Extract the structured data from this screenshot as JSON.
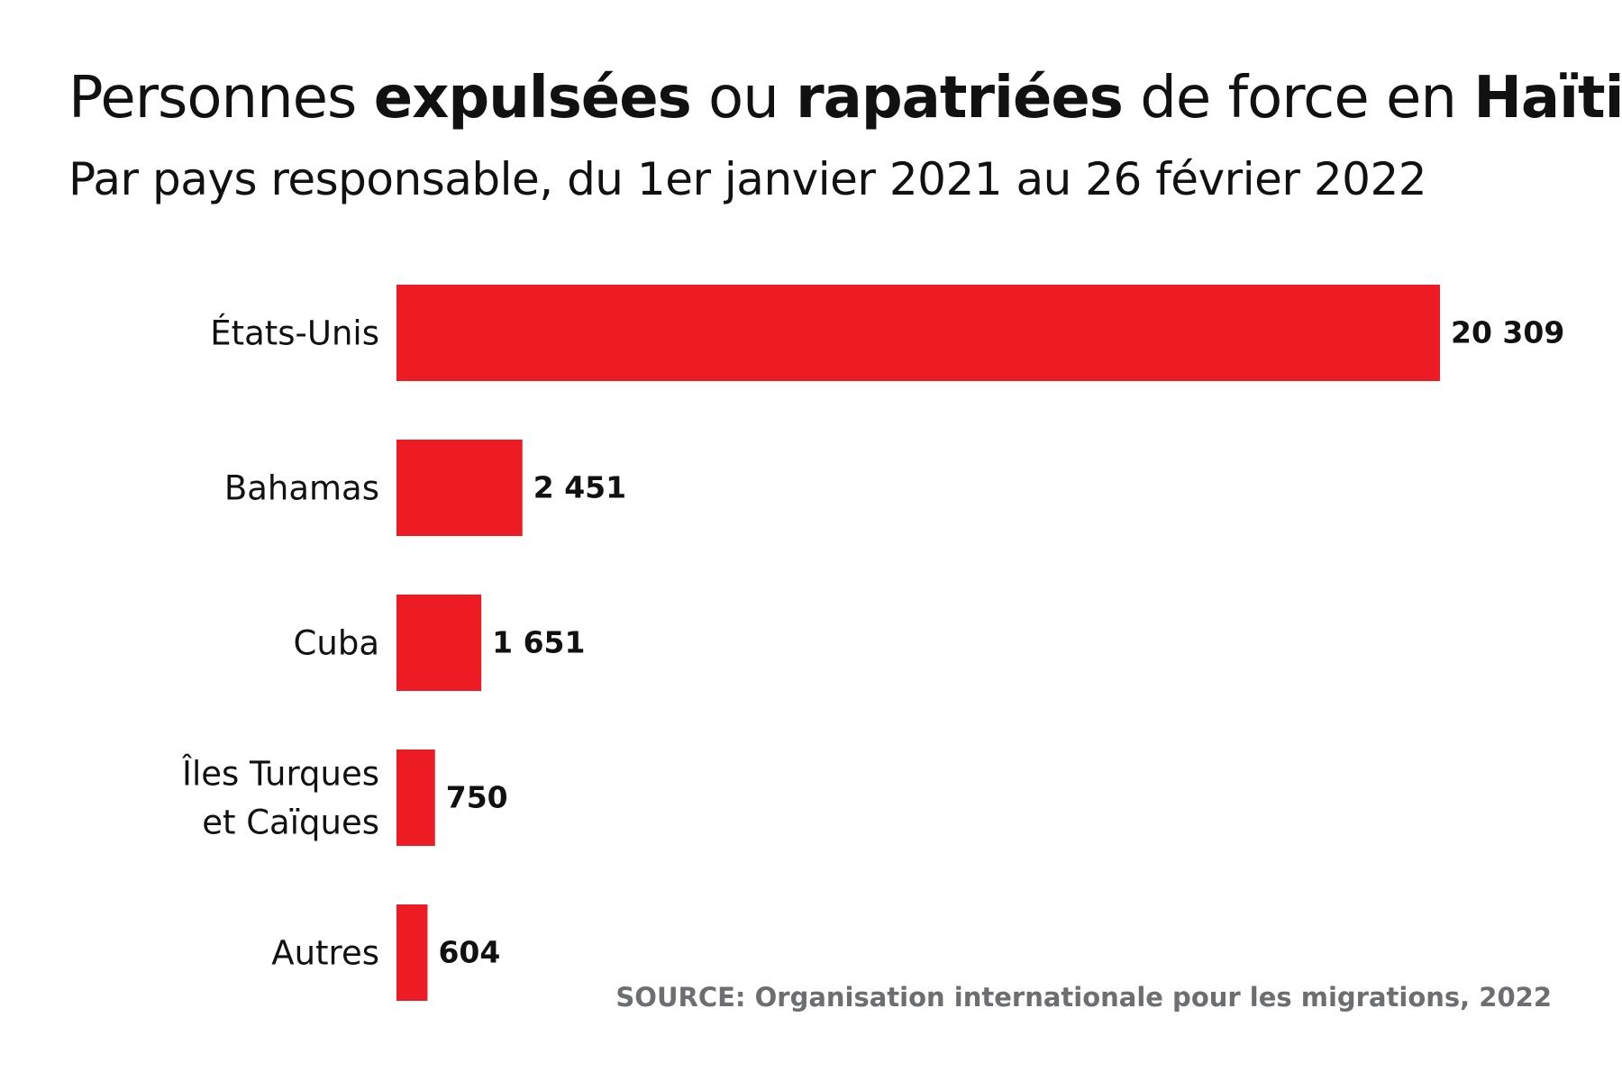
{
  "title_parts": [
    {
      "text": "Personnes ",
      "bold": false
    },
    {
      "text": "expulsées",
      "bold": true
    },
    {
      "text": " ou ",
      "bold": false
    },
    {
      "text": "rapatriées",
      "bold": true
    },
    {
      "text": " de force en ",
      "bold": false
    },
    {
      "text": "Haïti",
      "bold": true
    }
  ],
  "subtitle": "Par pays responsable, du 1er janvier 2021 au 26 février 2022",
  "source": "SOURCE: Organisation internationale pour les migrations, 2022",
  "chart_data": {
    "type": "bar",
    "orientation": "horizontal",
    "title": "Personnes expulsées ou rapatriées de force en Haïti",
    "subtitle": "Par pays responsable, du 1er janvier 2021 au 26 février 2022",
    "categories": [
      [
        "États-Unis"
      ],
      [
        "Bahamas"
      ],
      [
        "Cuba"
      ],
      [
        "Îles Turques",
        "et Caïques"
      ],
      [
        "Autres"
      ]
    ],
    "values": [
      20309,
      2451,
      1651,
      750,
      604
    ],
    "value_labels": [
      "20 309",
      "2 451",
      "1 651",
      "750",
      "604"
    ],
    "xlabel": "",
    "ylabel": "",
    "xlim": [
      0,
      20309
    ],
    "grid": false,
    "color": "#ed1c24"
  }
}
